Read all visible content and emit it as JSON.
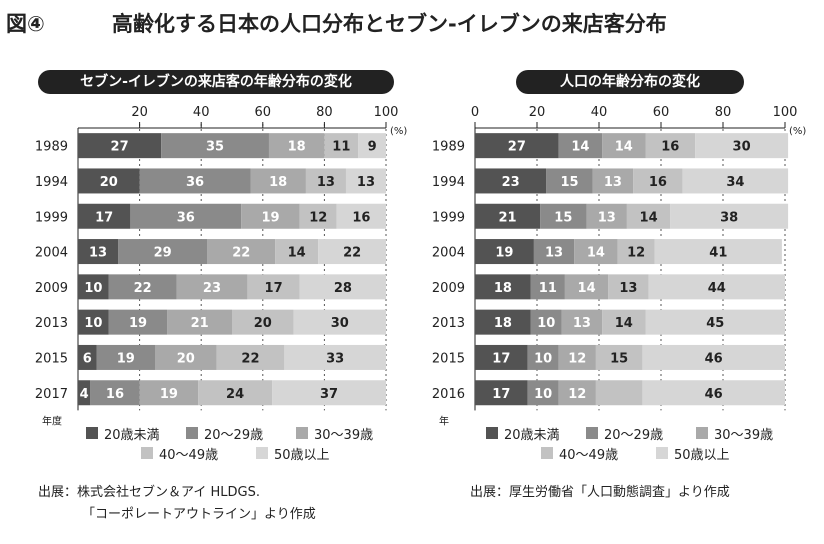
{
  "figure": {
    "label": "図④",
    "title": "高齢化する日本の人口分布とセブン-イレブンの来店客分布"
  },
  "sources": {
    "left_line1": "出展：株式会社セブン＆アイ HLDGS.",
    "left_line2": "「コーポレートアウトライン」より作成",
    "right_line1": "出展：厚生労働省「人口動態調査」より作成"
  },
  "colors": [
    "#535353",
    "#8a8a8a",
    "#a9a9a9",
    "#c2c2c2",
    "#d6d6d6"
  ],
  "chart_data": [
    {
      "type": "bar",
      "orientation": "horizontal-stacked",
      "title": "セブン-イレブンの来店客の年齢分布の変化",
      "categories": [
        "1989",
        "1994",
        "1999",
        "2004",
        "2009",
        "2013",
        "2015",
        "2017"
      ],
      "category_axis_label": "年度",
      "unit_label": "(%)",
      "xlim": [
        0,
        100
      ],
      "xticks": [
        20,
        40,
        60,
        80,
        100
      ],
      "grid": true,
      "legend_position": "bottom",
      "series": [
        {
          "name": "20歳未満",
          "values": [
            27,
            20,
            17,
            13,
            10,
            10,
            6,
            4
          ]
        },
        {
          "name": "20～29歳",
          "values": [
            35,
            36,
            36,
            29,
            22,
            19,
            19,
            16
          ]
        },
        {
          "name": "30～39歳",
          "values": [
            18,
            18,
            19,
            22,
            23,
            21,
            20,
            19
          ]
        },
        {
          "name": "40～49歳",
          "values": [
            11,
            13,
            12,
            14,
            17,
            20,
            22,
            24
          ]
        },
        {
          "name": "50歳以上",
          "values": [
            9,
            13,
            16,
            22,
            28,
            30,
            33,
            37
          ]
        }
      ]
    },
    {
      "type": "bar",
      "orientation": "horizontal-stacked",
      "title": "人口の年齢分布の変化",
      "categories": [
        "1989",
        "1994",
        "1999",
        "2004",
        "2009",
        "2013",
        "2015",
        "2016"
      ],
      "category_axis_label": "年",
      "unit_label": "(%)",
      "xlim": [
        0,
        100
      ],
      "xticks": [
        0,
        20,
        40,
        60,
        80,
        100
      ],
      "grid": true,
      "legend_position": "bottom",
      "series": [
        {
          "name": "20歳未満",
          "values": [
            27,
            23,
            21,
            19,
            18,
            18,
            17,
            17
          ]
        },
        {
          "name": "20～29歳",
          "values": [
            14,
            15,
            15,
            13,
            11,
            10,
            10,
            10
          ]
        },
        {
          "name": "30～39歳",
          "values": [
            14,
            13,
            13,
            14,
            14,
            13,
            12,
            12
          ]
        },
        {
          "name": "40～49歳",
          "values": [
            16,
            16,
            14,
            12,
            13,
            14,
            15,
            null
          ]
        },
        {
          "name": "50歳以上",
          "values": [
            30,
            34,
            38,
            41,
            44,
            45,
            46,
            46
          ]
        }
      ]
    }
  ]
}
